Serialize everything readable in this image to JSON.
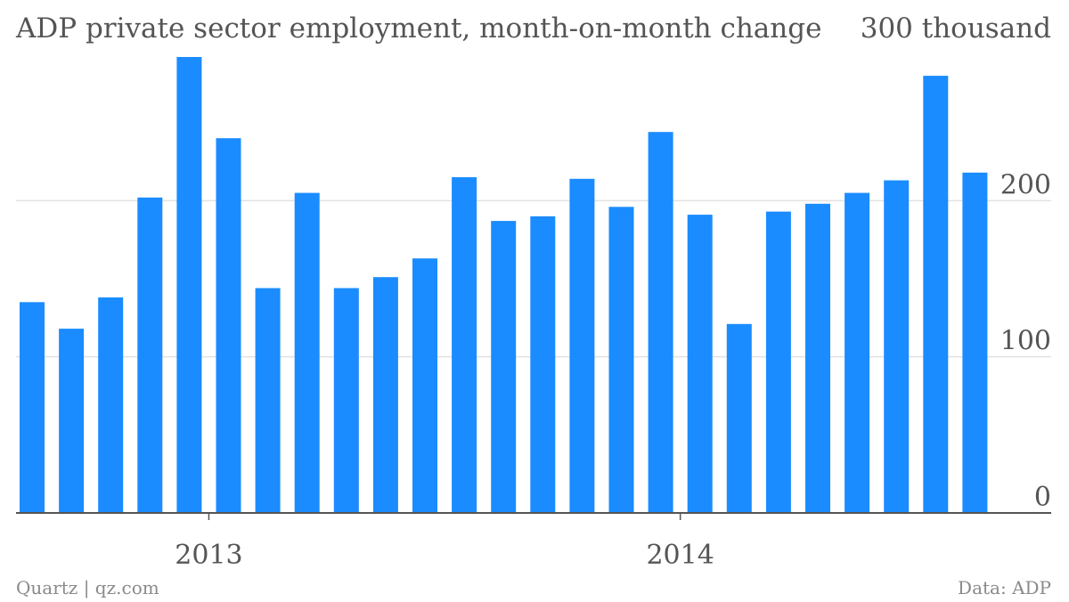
{
  "chart_data": {
    "type": "bar",
    "title": "ADP private sector employment, month-on-month change",
    "y_top_label": "300 thousand",
    "x_tick_labels": [
      "2013",
      "2014"
    ],
    "y_tick_labels": [
      "0",
      "100",
      "200"
    ],
    "ylim": [
      0,
      300
    ],
    "grid": true,
    "series": [
      {
        "values": [
          135,
          118,
          138,
          202,
          292,
          240,
          144,
          205,
          144,
          151,
          163,
          215,
          187,
          190,
          214,
          196,
          244,
          191,
          121,
          193,
          198,
          205,
          213,
          280,
          218
        ]
      }
    ],
    "bar_color": "#1a8cff",
    "source": "Data: ADP",
    "credit": "Quartz | qz.com"
  }
}
